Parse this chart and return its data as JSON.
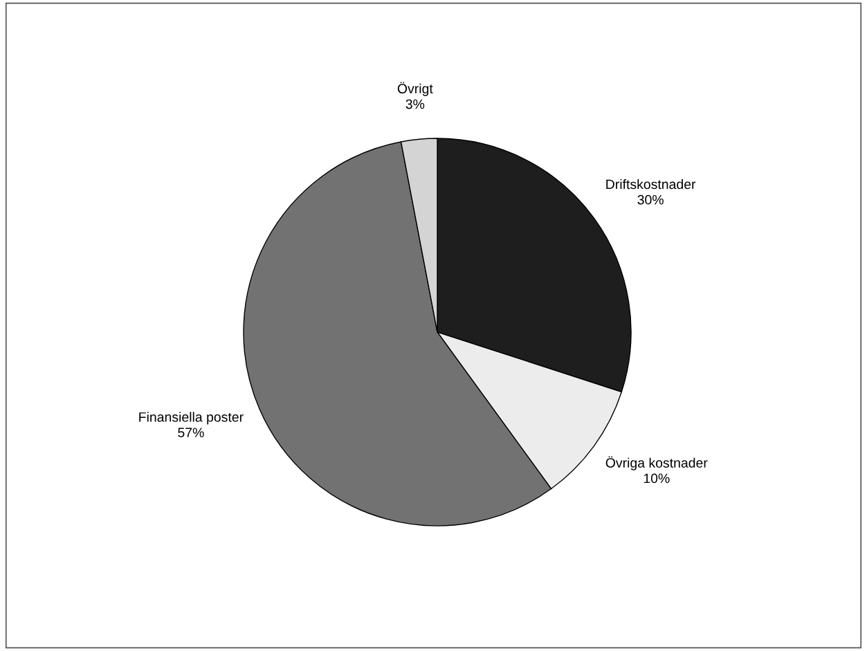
{
  "chart_data": {
    "type": "pie",
    "categories": [
      "Driftskostnader",
      "Övriga kostnader",
      "Finansiella poster",
      "Övrigt"
    ],
    "values": [
      30,
      10,
      57,
      3
    ],
    "colors": [
      "#1e1e1e",
      "#ececec",
      "#727272",
      "#d4d4d4"
    ],
    "value_labels": [
      "30%",
      "10%",
      "57%",
      "3%"
    ]
  }
}
